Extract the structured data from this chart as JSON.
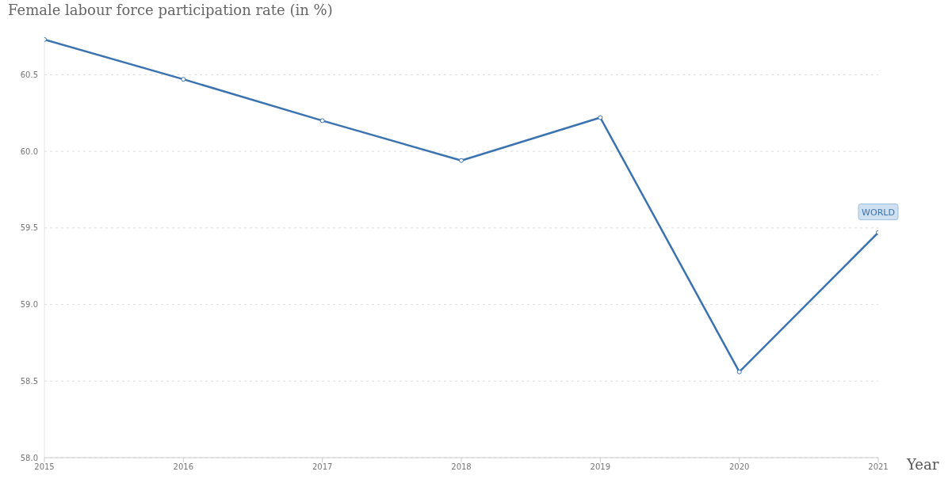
{
  "chart_data": {
    "type": "line",
    "title": "Female labour force participation rate (in %)",
    "xlabel": "Year",
    "x": [
      2015,
      2016,
      2017,
      2018,
      2019,
      2020,
      2021
    ],
    "series": [
      {
        "name": "WORLD",
        "color": "#3b73b0",
        "values": [
          60.73,
          60.47,
          60.2,
          59.94,
          60.22,
          58.56,
          59.47
        ]
      }
    ],
    "xlim": [
      2015,
      2021
    ],
    "xticks": [
      2015,
      2016,
      2017,
      2018,
      2019,
      2020,
      2021
    ],
    "ylim": [
      58,
      60.75
    ],
    "yticks": [
      {
        "value": 58,
        "label": "58.0"
      },
      58.5,
      {
        "value": 59,
        "label": "59.0"
      },
      59.5,
      {
        "value": 60,
        "label": "60.0"
      },
      60.5
    ],
    "grid": "y",
    "marker": "circle",
    "line_style": "solid"
  }
}
